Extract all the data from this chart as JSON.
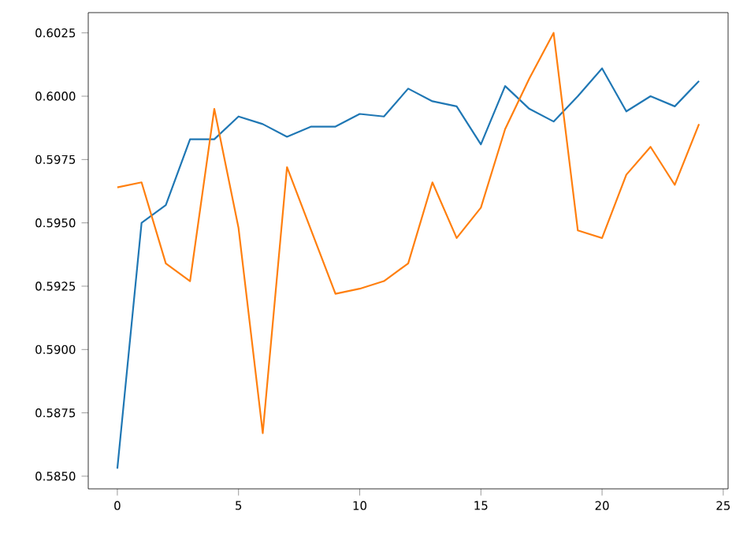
{
  "chart_data": {
    "type": "line",
    "x": [
      0,
      1,
      2,
      3,
      4,
      5,
      6,
      7,
      8,
      9,
      10,
      11,
      12,
      13,
      14,
      15,
      16,
      17,
      18,
      19,
      20,
      21,
      22,
      23,
      24
    ],
    "series": [
      {
        "color": "#1f77b4",
        "values": [
          0.5853,
          0.595,
          0.5957,
          0.5983,
          0.5983,
          0.5992,
          0.5989,
          0.5984,
          0.5988,
          0.5988,
          0.5993,
          0.5992,
          0.6003,
          0.5998,
          0.5996,
          0.5981,
          0.6004,
          0.5995,
          0.599,
          0.6,
          0.6011,
          0.5994,
          0.6,
          0.5996,
          0.6006
        ]
      },
      {
        "color": "#ff7f0e",
        "values": [
          0.5964,
          0.5966,
          0.5934,
          0.5927,
          0.5995,
          0.5948,
          0.5867,
          0.5972,
          0.5947,
          0.5922,
          0.5924,
          0.5927,
          0.5934,
          0.5966,
          0.5944,
          0.5956,
          0.5987,
          0.6007,
          0.6025,
          0.5947,
          0.5944,
          0.5969,
          0.598,
          0.5965,
          0.5989
        ]
      }
    ],
    "xlim": [
      -1.2,
      25.2
    ],
    "ylim": [
      0.5845,
      0.6033
    ],
    "xticks": [
      0,
      5,
      10,
      15,
      20,
      25
    ],
    "yticks": [
      {
        "value": 0.585,
        "label": "0.5850"
      },
      {
        "value": 0.5875,
        "label": "0.5875"
      },
      {
        "value": 0.59,
        "label": "0.5900"
      },
      {
        "value": 0.5925,
        "label": "0.5925"
      },
      {
        "value": 0.595,
        "label": "0.5950"
      },
      {
        "value": 0.5975,
        "label": "0.5975"
      },
      {
        "value": 0.6,
        "label": "0.6000"
      },
      {
        "value": 0.6025,
        "label": "0.6025"
      }
    ],
    "grid": false,
    "marker": "none",
    "line_style": "solid"
  }
}
